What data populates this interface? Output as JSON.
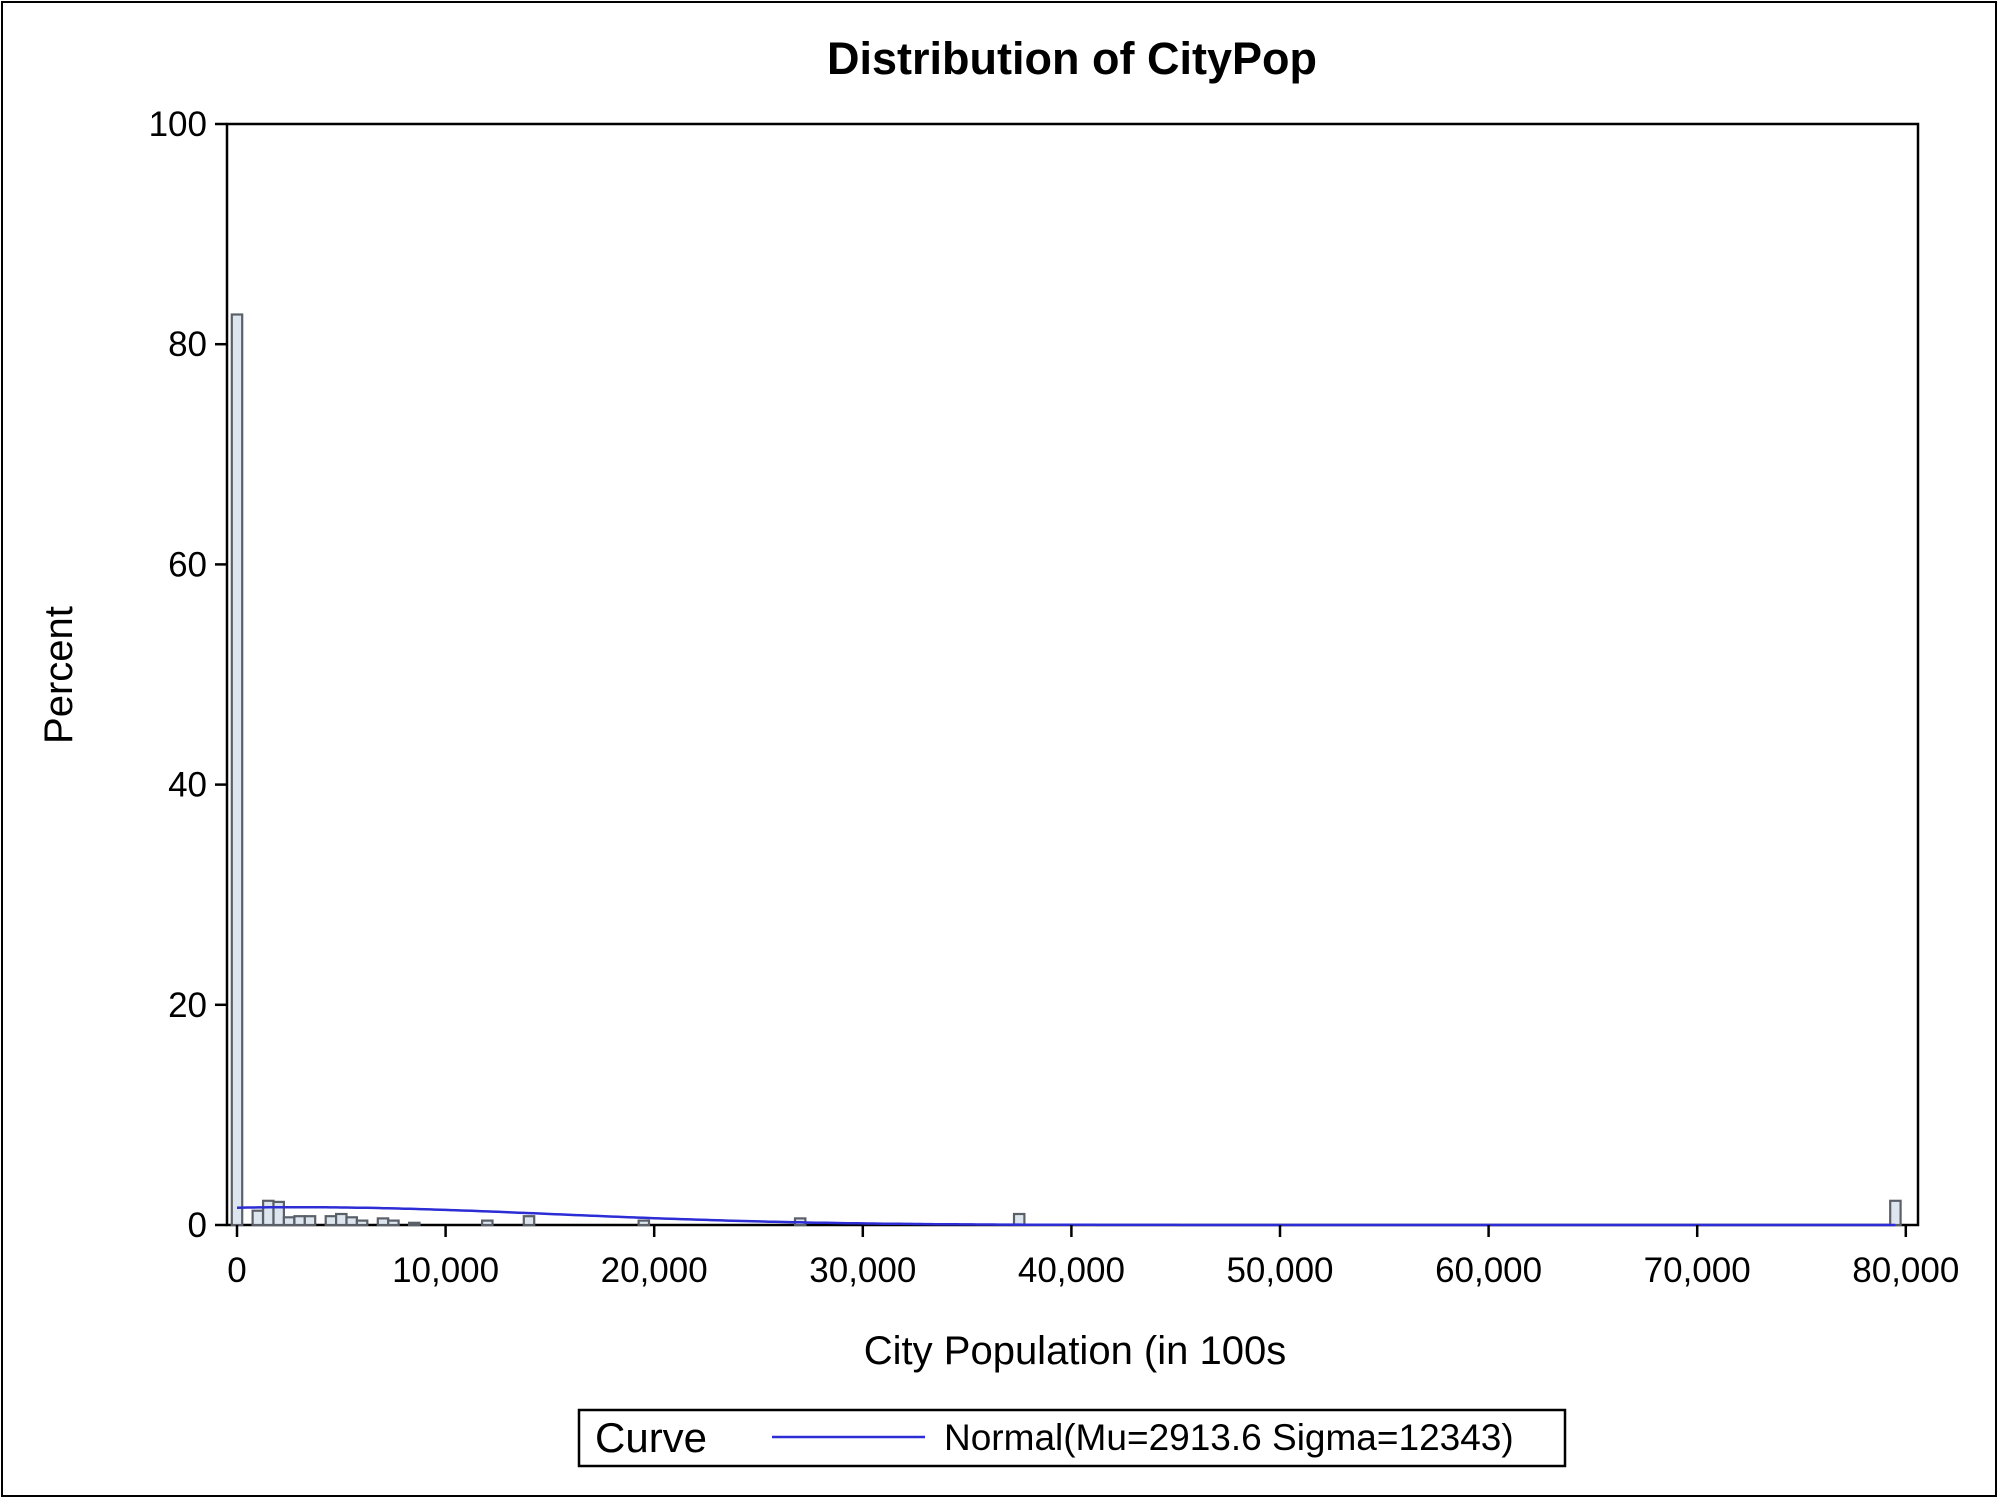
{
  "chart_data": {
    "type": "bar",
    "title": "Distribution of CityPop",
    "xlabel": "City Population (in 100s",
    "ylabel": "Percent",
    "xlim": [
      -500,
      80700
    ],
    "ylim": [
      0,
      100
    ],
    "x_ticks": [
      0,
      10000,
      20000,
      30000,
      40000,
      50000,
      60000,
      70000,
      80000
    ],
    "x_tick_labels": [
      "0",
      "10,000",
      "20,000",
      "30,000",
      "40,000",
      "50,000",
      "60,000",
      "70,000",
      "80,000"
    ],
    "y_ticks": [
      0,
      20,
      40,
      60,
      80,
      100
    ],
    "y_tick_labels": [
      "0",
      "20",
      "40",
      "60",
      "80",
      "100"
    ],
    "bin_width": 500,
    "histogram": {
      "bin_midpoints": [
        0,
        1000,
        1500,
        2000,
        2500,
        3000,
        3500,
        4500,
        5000,
        5500,
        6000,
        7000,
        7500,
        8500,
        12000,
        14000,
        19500,
        27000,
        37500,
        79500
      ],
      "percent": [
        82.7,
        1.3,
        2.2,
        2.1,
        0.7,
        0.8,
        0.8,
        0.8,
        1.0,
        0.7,
        0.4,
        0.6,
        0.4,
        0.2,
        0.4,
        0.8,
        0.4,
        0.6,
        1.0,
        2.2
      ]
    },
    "series": [
      {
        "name": "Normal(Mu=2913.6 Sigma=12343)",
        "type": "line",
        "distribution": "normal",
        "mu": 2913.6,
        "sigma": 12343,
        "color": "#2d2dd6"
      }
    ],
    "colors": {
      "bar_fill": "#dde6ee",
      "bar_edge": "#5b6068",
      "curve": "#2d2dd6"
    },
    "grid": false,
    "legend": {
      "title": "Curve",
      "position": "bottom-center"
    }
  }
}
